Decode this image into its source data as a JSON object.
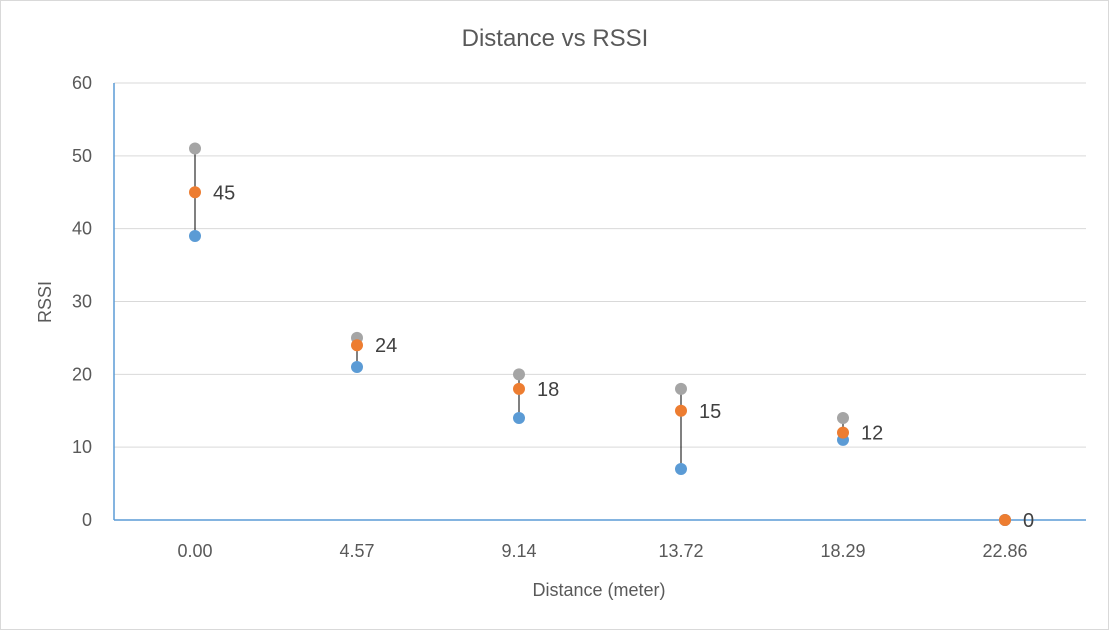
{
  "chart_data": {
    "type": "scatter",
    "title": "Distance vs RSSI",
    "xlabel": "Distance (meter)",
    "ylabel": "RSSI",
    "categories": [
      "0.00",
      "4.57",
      "9.14",
      "13.72",
      "18.29",
      "22.86"
    ],
    "ylim": [
      0,
      60
    ],
    "yticks": [
      0,
      10,
      20,
      30,
      40,
      50,
      60
    ],
    "grid": true,
    "legend": "none",
    "series": [
      {
        "values": [
          51,
          25,
          20,
          18,
          14,
          0
        ],
        "color": "#a5a5a5"
      },
      {
        "values": [
          39,
          21,
          14,
          7,
          11,
          0
        ],
        "color": "#5b9bd5"
      },
      {
        "values": [
          45,
          24,
          18,
          15,
          12,
          0
        ],
        "color": "#ed7d31"
      }
    ],
    "data_labels": [
      "45",
      "24",
      "18",
      "15",
      "12",
      "0"
    ],
    "axis_color": "#5b9bd5",
    "range_line_color": "#000000"
  }
}
